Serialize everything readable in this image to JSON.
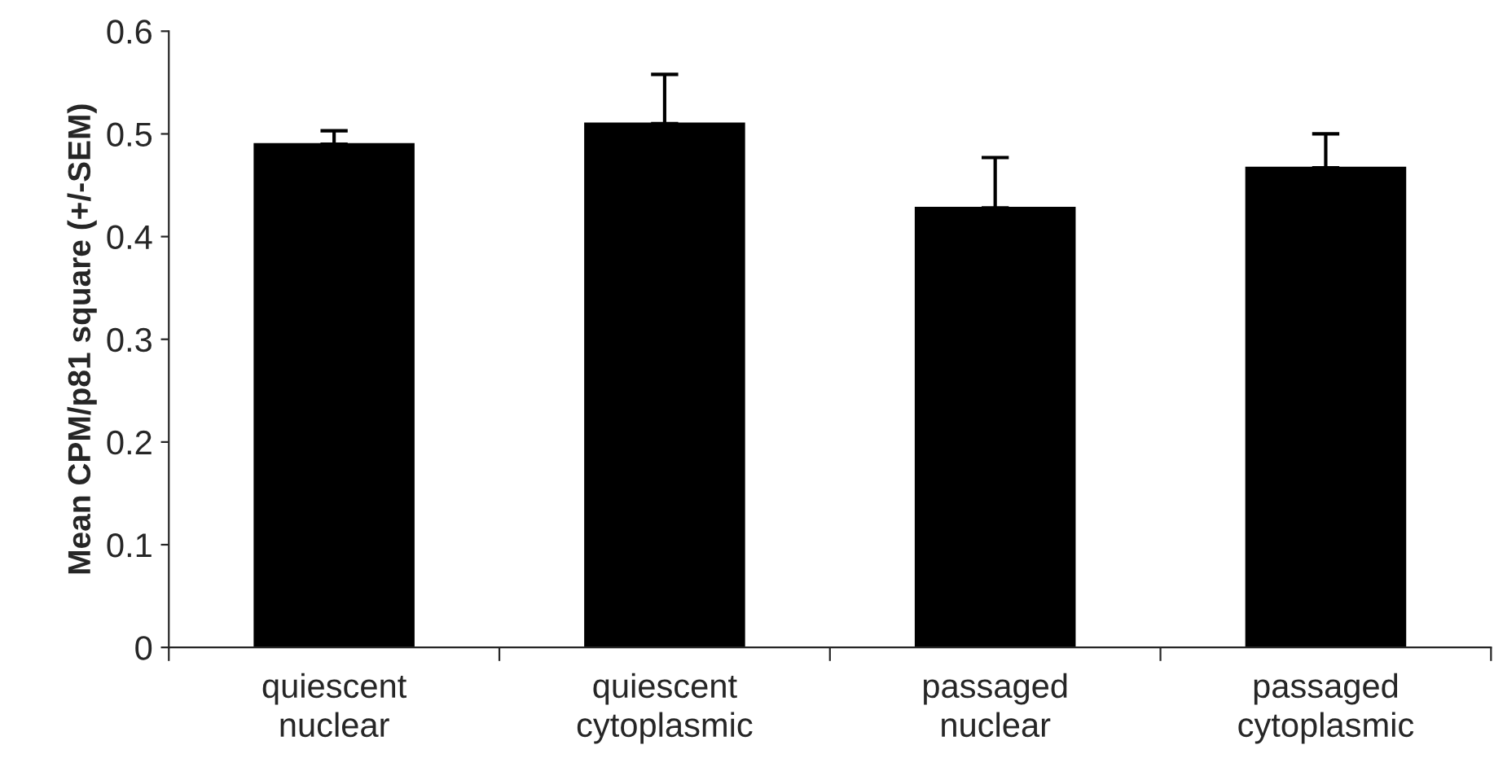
{
  "chart_data": {
    "type": "bar",
    "ylabel": "Mean CPM/p81 square (+/-SEM)",
    "categories": [
      "quiescent\nnuclear",
      "quiescent\ncytoplasmic",
      "passaged\nnuclear",
      "passaged\ncytoplasmic"
    ],
    "values": [
      0.49,
      0.51,
      0.428,
      0.467
    ],
    "color": "#000000",
    "errors": [
      [
        0.49,
        0.503
      ],
      [
        0.51,
        0.558
      ],
      [
        0.428,
        0.477
      ],
      [
        0.467,
        0.5
      ]
    ],
    "ylim": [
      0,
      0.6
    ],
    "yticks": [
      0,
      0.1,
      0.2,
      0.3,
      0.4,
      0.5,
      0.6
    ],
    "grid": false,
    "legend": false
  }
}
